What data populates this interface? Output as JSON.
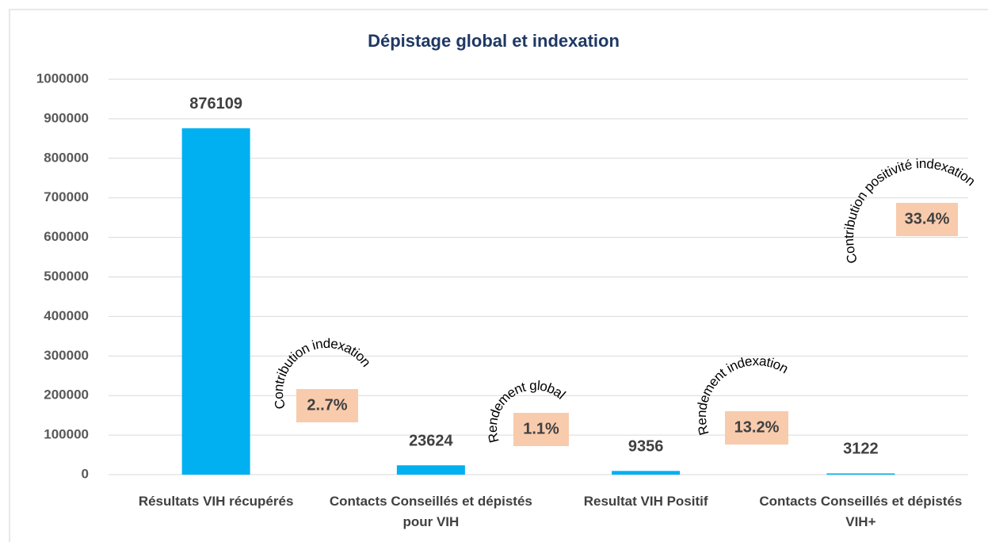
{
  "chart_data": {
    "type": "bar",
    "title": "Dépistage global et indexation",
    "categories": [
      "Résultats VIH récupérés",
      "Contacts Conseillés et dépistés pour VIH",
      "Resultat VIH Positif",
      "Contacts Conseillés et dépistés VIH+"
    ],
    "values": [
      876109,
      23624,
      9356,
      3122
    ],
    "color": "#00b0f0",
    "ylim": [
      0,
      1000000
    ],
    "yticks": [
      0,
      100000,
      200000,
      300000,
      400000,
      500000,
      600000,
      700000,
      800000,
      900000,
      1000000
    ],
    "grid": true,
    "annotations": [
      {
        "text": "Contribution indexation",
        "label": "2..7%"
      },
      {
        "text": "Rendement global",
        "label": "1.1%"
      },
      {
        "text": "Rendement indexation",
        "label": "13.2%"
      },
      {
        "text": "Contribution positivité indexation",
        "label": "33.4%"
      }
    ]
  }
}
